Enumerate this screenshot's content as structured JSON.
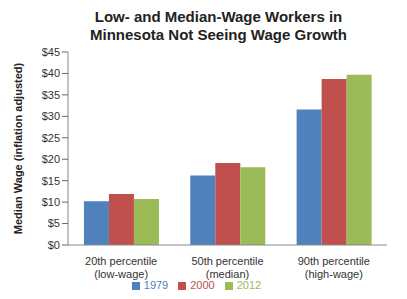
{
  "chart_data": {
    "type": "bar",
    "title": "Low- and Median-Wage Workers in Minnesota Not Seeing Wage Growth",
    "y_label": "Median Wage (inflation adjusted)",
    "categories": [
      "20th percentile (low-wage)",
      "50th percentile (median)",
      "90th percentile (high-wage)"
    ],
    "series": [
      {
        "name": "1979",
        "color": "#4f81bd",
        "values": [
          10.2,
          16.2,
          31.6
        ]
      },
      {
        "name": "2000",
        "color": "#c0504d",
        "values": [
          11.9,
          19.1,
          38.7
        ]
      },
      {
        "name": "2012",
        "color": "#9bbb59",
        "values": [
          10.7,
          18.1,
          39.7
        ]
      }
    ],
    "ylim": [
      0,
      45
    ],
    "yticks": [
      {
        "value": 0,
        "label": "$0"
      },
      {
        "value": 5,
        "label": "$5"
      },
      {
        "value": 10,
        "label": "$10"
      },
      {
        "value": 15,
        "label": "$15"
      },
      {
        "value": 20,
        "label": "$20"
      },
      {
        "value": 25,
        "label": "$25"
      },
      {
        "value": 30,
        "label": "$30"
      },
      {
        "value": 35,
        "label": "$35"
      },
      {
        "value": 40,
        "label": "$40"
      },
      {
        "value": 45,
        "label": "$45"
      }
    ],
    "grid": false,
    "legend": "bottom"
  }
}
